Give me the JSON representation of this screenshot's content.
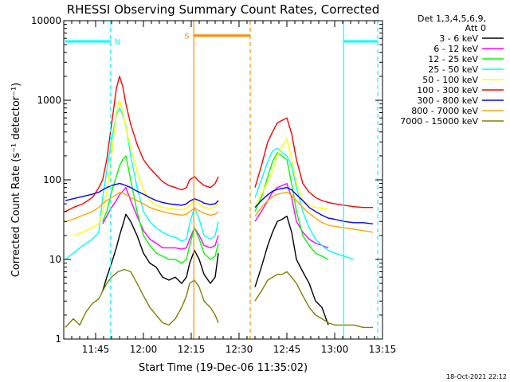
{
  "chart_data": {
    "type": "line",
    "title": "RHESSI Observing Summary Count Rates, Corrected",
    "xlabel": "Start Time (19-Dec-06 11:35:02)",
    "ylabel": "Corrected Count Rate (s⁻¹ detector⁻¹)",
    "x_unit": "minutes after 11:35:02",
    "xlim": [
      0,
      100
    ],
    "ylim": [
      1,
      10000
    ],
    "yscale": "log",
    "x_ticks": [
      {
        "x": 10,
        "label": "11:45"
      },
      {
        "x": 25,
        "label": "12:00"
      },
      {
        "x": 40,
        "label": "12:15"
      },
      {
        "x": 55,
        "label": "12:30"
      },
      {
        "x": 70,
        "label": "12:45"
      },
      {
        "x": 85,
        "label": "13:00"
      },
      {
        "x": 100,
        "label": "13:15"
      }
    ],
    "y_ticks": [
      {
        "y": 1,
        "label": "1"
      },
      {
        "y": 10,
        "label": "10"
      },
      {
        "y": 100,
        "label": "100"
      },
      {
        "y": 1000,
        "label": "1000"
      },
      {
        "y": 10000,
        "label": "10000"
      }
    ],
    "legend_header": [
      "Det 1,3,4,5,6,9,",
      "Att 0"
    ],
    "legend_position": "right",
    "series": [
      {
        "name": "3 - 6 keV",
        "color": "#000000",
        "segments": [
          {
            "x": [
              12.2,
              13.5,
              15,
              16.5,
              17.5,
              18.5,
              19.5,
              21,
              23,
              25,
              27,
              29,
              31,
              33,
              35,
              37,
              38.5,
              39.5,
              41,
              42.5,
              44,
              46,
              47.5,
              48.5
            ],
            "y": [
              4,
              6,
              9,
              14,
              20,
              27,
              37,
              30,
              20,
              12,
              9,
              8,
              6,
              5.5,
              6,
              5,
              6,
              9,
              13,
              10,
              6.5,
              5,
              6,
              12
            ]
          },
          {
            "x": [
              60,
              62,
              64,
              65.5,
              67,
              68.5,
              70,
              71.5,
              73,
              75,
              77,
              79,
              81,
              83
            ],
            "y": [
              4.5,
              8,
              15,
              22,
              30,
              32,
              35,
              22,
              10,
              7,
              5,
              3,
              2.5,
              1.5
            ]
          }
        ]
      },
      {
        "name": "6 - 12 keV",
        "color": "#ff00ff",
        "segments": [
          {
            "x": [
              12.2,
              13.5,
              15,
              16.5,
              17.5,
              18.5,
              19.5,
              21,
              23,
              25,
              27,
              29,
              31,
              33,
              35,
              37,
              38.5,
              39.5,
              41,
              42.5,
              44,
              46,
              47.5,
              48.5
            ],
            "y": [
              28,
              35,
              45,
              55,
              65,
              72,
              80,
              55,
              35,
              23,
              18,
              16,
              14,
              14,
              14,
              13.5,
              14,
              18,
              25,
              20,
              15,
              14,
              15,
              20
            ]
          },
          {
            "x": [
              60,
              62,
              64,
              65.5,
              67,
              68.5,
              70,
              71.5,
              73,
              75,
              77,
              79,
              81,
              83
            ],
            "y": [
              30,
              40,
              55,
              70,
              80,
              85,
              90,
              60,
              30,
              22,
              18,
              16,
              15,
              14
            ]
          }
        ]
      },
      {
        "name": "12 - 25 keV",
        "color": "#00ff00",
        "segments": [
          {
            "x": [
              12.2,
              13.5,
              15,
              16.5,
              17.5,
              18.5,
              19.5,
              21,
              23,
              25,
              27,
              29,
              31,
              33,
              35,
              37,
              38.5,
              39.5,
              41,
              42.5,
              44,
              46,
              47.5,
              48.5
            ],
            "y": [
              30,
              40,
              70,
              110,
              150,
              180,
              200,
              100,
              40,
              20,
              15,
              12,
              11,
              10,
              10,
              9,
              10,
              15,
              25,
              18,
              12,
              10,
              11,
              16
            ]
          },
          {
            "x": [
              60,
              62,
              64,
              65.5,
              67,
              68.5,
              70,
              71.5,
              73,
              75,
              77,
              79,
              81,
              83
            ],
            "y": [
              40,
              60,
              110,
              170,
              220,
              200,
              180,
              90,
              40,
              20,
              15,
              12,
              11,
              10
            ]
          }
        ]
      },
      {
        "name": "25 - 50 keV",
        "color": "#00ffff",
        "segments": [
          {
            "x": [
              0.5,
              3,
              6,
              9,
              11,
              12.2,
              13.5,
              15,
              16.5,
              17.5,
              18.5,
              19.5,
              21,
              23,
              25,
              27,
              29,
              31,
              33,
              35,
              37,
              38.5,
              39.5,
              41,
              42.5,
              44,
              46,
              47.5,
              48.5
            ],
            "y": [
              10,
              12,
              15,
              18,
              22,
              60,
              130,
              320,
              650,
              800,
              650,
              480,
              200,
              80,
              40,
              30,
              25,
              22,
              20,
              19,
              17,
              18,
              28,
              45,
              32,
              20,
              18,
              20,
              30
            ]
          },
          {
            "x": [
              60,
              62,
              64,
              65.5,
              67,
              68.5,
              70,
              71.5,
              73,
              75,
              77,
              79,
              81,
              83,
              85,
              88,
              91
            ],
            "y": [
              60,
              100,
              170,
              230,
              250,
              220,
              200,
              150,
              80,
              40,
              25,
              18,
              15,
              13,
              12,
              11,
              10
            ]
          }
        ]
      },
      {
        "name": "50 - 100 keV",
        "color": "#ffff00",
        "segments": [
          {
            "x": [
              3,
              6,
              9,
              11,
              12.2,
              13.5,
              15,
              16.5,
              17.5,
              18.5,
              19.5,
              21,
              23,
              25,
              27,
              29,
              31,
              33,
              35,
              37,
              38.5,
              39.5,
              41,
              42.5,
              44,
              46,
              47.5,
              48.5
            ],
            "y": [
              20,
              22,
              25,
              28,
              40,
              70,
              200,
              700,
              1000,
              700,
              450,
              250,
              130,
              75,
              55,
              48,
              45,
              44,
              43,
              42,
              44,
              48,
              55,
              50,
              45,
              44,
              46,
              50
            ]
          },
          {
            "x": [
              60,
              62,
              64,
              65.5,
              67,
              68.5,
              70,
              71.5,
              73,
              75,
              77,
              79,
              81,
              83
            ],
            "y": [
              45,
              65,
              95,
              130,
              200,
              260,
              330,
              180,
              90,
              55,
              48,
              45,
              44,
              43
            ]
          }
        ]
      },
      {
        "name": "100 - 300 keV",
        "color": "#ff0000",
        "segments": [
          {
            "x": [
              0.5,
              3,
              6,
              9,
              11,
              12.2,
              13.5,
              15,
              16.5,
              17.5,
              18.5,
              19.5,
              21,
              23,
              25,
              27,
              29,
              31,
              33,
              35,
              37,
              38.5,
              39.5,
              41,
              42.5,
              44,
              46,
              47.5,
              48.5
            ],
            "y": [
              40,
              45,
              50,
              60,
              80,
              100,
              180,
              500,
              1400,
              2000,
              1500,
              900,
              500,
              280,
              180,
              140,
              115,
              95,
              85,
              80,
              75,
              80,
              100,
              110,
              95,
              85,
              80,
              90,
              110
            ]
          },
          {
            "x": [
              60,
              62,
              64,
              65.5,
              67,
              68.5,
              70,
              71.5,
              73,
              75,
              77,
              79,
              81,
              83,
              85,
              88,
              91,
              94,
              97
            ],
            "y": [
              80,
              150,
              300,
              400,
              520,
              560,
              600,
              380,
              180,
              90,
              70,
              60,
              55,
              52,
              50,
              48,
              46,
              45,
              45
            ]
          }
        ]
      },
      {
        "name": "300 - 800 keV",
        "color": "#0000ff",
        "segments": [
          {
            "x": [
              0.5,
              3,
              6,
              9,
              11,
              12.2,
              13.5,
              15,
              16.5,
              17.5,
              18.5,
              19.5,
              21,
              23,
              25,
              27,
              29,
              31,
              33,
              35,
              37,
              38.5,
              39.5,
              41,
              42.5,
              44,
              46,
              47.5,
              48.5
            ],
            "y": [
              55,
              58,
              62,
              66,
              70,
              75,
              80,
              85,
              88,
              90,
              88,
              85,
              80,
              72,
              66,
              60,
              55,
              52,
              50,
              49,
              48,
              50,
              54,
              58,
              55,
              51,
              49,
              50,
              55
            ]
          },
          {
            "x": [
              60,
              62,
              64,
              65.5,
              67,
              68.5,
              70,
              71.5,
              73,
              75,
              77,
              79,
              81,
              83,
              85,
              88,
              91,
              94,
              97
            ],
            "y": [
              45,
              55,
              65,
              72,
              76,
              78,
              80,
              75,
              65,
              55,
              45,
              40,
              36,
              33,
              32,
              30,
              29,
              29,
              28
            ]
          }
        ]
      },
      {
        "name": "800 - 7000 keV",
        "color": "#ffa500",
        "segments": [
          {
            "x": [
              0.5,
              3,
              6,
              9,
              11,
              12.2,
              13.5,
              15,
              16.5,
              17.5,
              18.5,
              19.5,
              21,
              23,
              25,
              27,
              29,
              31,
              33,
              35,
              37,
              38.5,
              39.5,
              41,
              42.5,
              44,
              46,
              47.5,
              48.5
            ],
            "y": [
              30,
              32,
              36,
              40,
              45,
              50,
              55,
              60,
              65,
              70,
              68,
              65,
              60,
              55,
              50,
              45,
              42,
              40,
              38,
              37,
              36,
              37,
              40,
              44,
              41,
              38,
              36,
              37,
              40
            ]
          },
          {
            "x": [
              60,
              62,
              64,
              65.5,
              67,
              68.5,
              70,
              71.5,
              73,
              75,
              77,
              79,
              81,
              83,
              85,
              88,
              91,
              94,
              97
            ],
            "y": [
              35,
              45,
              55,
              62,
              66,
              68,
              70,
              64,
              55,
              45,
              38,
              33,
              29,
              27,
              26,
              25,
              24,
              23,
              22
            ]
          }
        ]
      },
      {
        "name": "7000 - 15000 keV",
        "color": "#808000",
        "segments": [
          {
            "x": [
              0.5,
              3,
              5,
              7,
              9,
              11,
              12.2,
              13.5,
              15,
              17,
              19,
              21,
              23,
              25,
              27,
              29,
              31,
              33,
              35,
              37,
              38.5,
              39.5,
              41,
              42.5,
              44,
              46,
              47.5,
              48.5
            ],
            "y": [
              1.4,
              1.8,
              1.5,
              2.2,
              2.8,
              3.2,
              4,
              5,
              6,
              7,
              7.5,
              7,
              5,
              3.5,
              2.5,
              2,
              1.6,
              1.5,
              1.8,
              2.5,
              3.5,
              5,
              5.5,
              4.5,
              3,
              2.5,
              2,
              1.6
            ]
          },
          {
            "x": [
              60,
              62,
              64,
              65.5,
              67,
              68.5,
              70,
              71.5,
              73,
              75,
              77,
              79,
              81,
              83,
              85,
              88,
              91,
              94,
              97
            ],
            "y": [
              3,
              4,
              5.5,
              6,
              6.5,
              6.5,
              7,
              6,
              5,
              3.5,
              2.5,
              2,
              1.8,
              1.6,
              1.5,
              1.5,
              1.5,
              1.4,
              1.4
            ]
          }
        ]
      }
    ],
    "annotations": {
      "night_label": "N",
      "saa_label": "S",
      "night_bars": [
        {
          "x_start": 0.5,
          "x_end": 14.7,
          "y": 5500
        },
        {
          "x_start": 87.8,
          "x_end": 98.5,
          "y": 5500
        }
      ],
      "saa_bar": {
        "x_start": 40.8,
        "x_end": 58.5,
        "y": 6500
      },
      "cyan_lines": [
        {
          "x": 14.7,
          "style": "dashed"
        },
        {
          "x": 87.8,
          "style": "solid"
        },
        {
          "x": 98.5,
          "style": "dashed"
        }
      ],
      "orange_lines": [
        {
          "x": 40.8,
          "style": "solid"
        },
        {
          "x": 58.5,
          "style": "dashed"
        }
      ]
    },
    "grid": false
  },
  "footer": {
    "timestamp": "18-Oct-2021 22:12"
  },
  "colors": {
    "background": "#ffffff",
    "night": "#00ffff",
    "saa": "#ff8c00"
  }
}
